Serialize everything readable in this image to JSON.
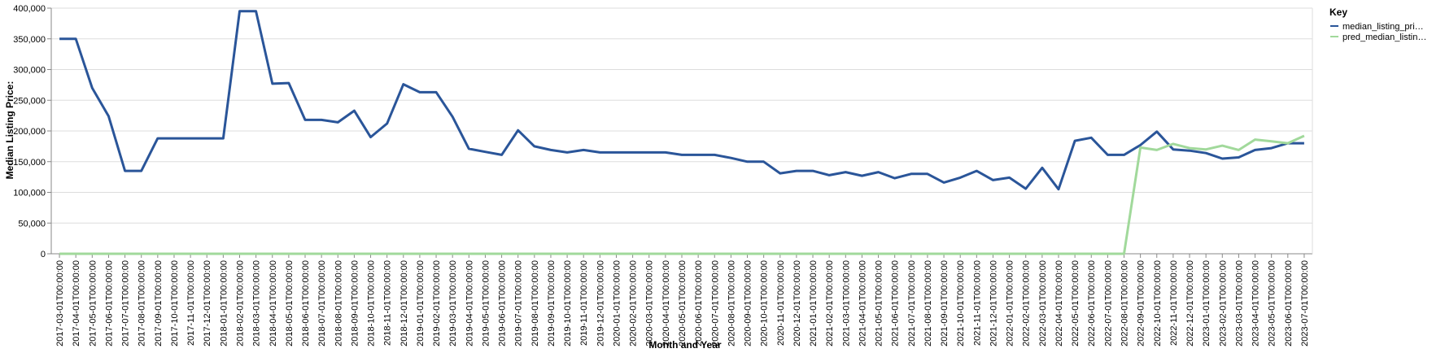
{
  "chart_data": {
    "type": "line",
    "xlabel": "Month and Year",
    "ylabel": "Median Listing Price:",
    "ylim": [
      0,
      400000
    ],
    "yticks": [
      "0",
      "50,000",
      "100,000",
      "150,000",
      "200,000",
      "250,000",
      "300,000",
      "350,000",
      "400,000"
    ],
    "grid": true,
    "legend": {
      "title": "Key",
      "placement": "top-right"
    },
    "x": [
      "2017-03-01T00:00:00",
      "2017-04-01T00:00:00",
      "2017-05-01T00:00:00",
      "2017-06-01T00:00:00",
      "2017-07-01T00:00:00",
      "2017-08-01T00:00:00",
      "2017-09-01T00:00:00",
      "2017-10-01T00:00:00",
      "2017-11-01T00:00:00",
      "2017-12-01T00:00:00",
      "2018-01-01T00:00:00",
      "2018-02-01T00:00:00",
      "2018-03-01T00:00:00",
      "2018-04-01T00:00:00",
      "2018-05-01T00:00:00",
      "2018-06-01T00:00:00",
      "2018-07-01T00:00:00",
      "2018-08-01T00:00:00",
      "2018-09-01T00:00:00",
      "2018-10-01T00:00:00",
      "2018-11-01T00:00:00",
      "2018-12-01T00:00:00",
      "2019-01-01T00:00:00",
      "2019-02-01T00:00:00",
      "2019-03-01T00:00:00",
      "2019-04-01T00:00:00",
      "2019-05-01T00:00:00",
      "2019-06-01T00:00:00",
      "2019-07-01T00:00:00",
      "2019-08-01T00:00:00",
      "2019-09-01T00:00:00",
      "2019-10-01T00:00:00",
      "2019-11-01T00:00:00",
      "2019-12-01T00:00:00",
      "2020-01-01T00:00:00",
      "2020-02-01T00:00:00",
      "2020-03-01T00:00:00",
      "2020-04-01T00:00:00",
      "2020-05-01T00:00:00",
      "2020-06-01T00:00:00",
      "2020-07-01T00:00:00",
      "2020-08-01T00:00:00",
      "2020-09-01T00:00:00",
      "2020-10-01T00:00:00",
      "2020-11-01T00:00:00",
      "2020-12-01T00:00:00",
      "2021-01-01T00:00:00",
      "2021-02-01T00:00:00",
      "2021-03-01T00:00:00",
      "2021-04-01T00:00:00",
      "2021-05-01T00:00:00",
      "2021-06-01T00:00:00",
      "2021-07-01T00:00:00",
      "2021-08-01T00:00:00",
      "2021-09-01T00:00:00",
      "2021-10-01T00:00:00",
      "2021-11-01T00:00:00",
      "2021-12-01T00:00:00",
      "2022-01-01T00:00:00",
      "2022-02-01T00:00:00",
      "2022-03-01T00:00:00",
      "2022-04-01T00:00:00",
      "2022-05-01T00:00:00",
      "2022-06-01T00:00:00",
      "2022-07-01T00:00:00",
      "2022-08-01T00:00:00",
      "2022-09-01T00:00:00",
      "2022-10-01T00:00:00",
      "2022-11-01T00:00:00",
      "2022-12-01T00:00:00",
      "2023-01-01T00:00:00",
      "2023-02-01T00:00:00",
      "2023-03-01T00:00:00",
      "2023-04-01T00:00:00",
      "2023-05-01T00:00:00",
      "2023-06-01T00:00:00",
      "2023-07-01T00:00:00"
    ],
    "series": [
      {
        "name": "median_listing_pri…",
        "color": "#2a5599",
        "values": [
          350000,
          350000,
          270000,
          224000,
          135000,
          135000,
          188000,
          188000,
          188000,
          188000,
          188000,
          395000,
          395000,
          277000,
          278000,
          218000,
          218000,
          214000,
          233000,
          190000,
          212000,
          276000,
          263000,
          263000,
          223000,
          171000,
          166000,
          161000,
          201000,
          175000,
          169000,
          165000,
          169000,
          165000,
          165000,
          165000,
          165000,
          165000,
          161000,
          161000,
          161000,
          156000,
          150000,
          150000,
          131000,
          135000,
          135000,
          128000,
          133000,
          127000,
          133000,
          123000,
          130000,
          130000,
          116000,
          124000,
          135000,
          120000,
          124000,
          106000,
          140000,
          105000,
          184000,
          189000,
          161000,
          161000,
          177000,
          199000,
          170000,
          168000,
          164000,
          155000,
          157000,
          169000,
          172000,
          180000,
          180000
        ]
      },
      {
        "name": "pred_median_listin…",
        "color": "#a1d99b",
        "values": [
          0,
          0,
          0,
          0,
          0,
          0,
          0,
          0,
          0,
          0,
          0,
          0,
          0,
          0,
          0,
          0,
          0,
          0,
          0,
          0,
          0,
          0,
          0,
          0,
          0,
          0,
          0,
          0,
          0,
          0,
          0,
          0,
          0,
          0,
          0,
          0,
          0,
          0,
          0,
          0,
          0,
          0,
          0,
          0,
          0,
          0,
          0,
          0,
          0,
          0,
          0,
          0,
          0,
          0,
          0,
          0,
          0,
          0,
          0,
          0,
          0,
          0,
          0,
          0,
          0,
          0,
          173000,
          169000,
          179000,
          172000,
          170000,
          176000,
          169000,
          186000,
          183000,
          180000,
          192000
        ]
      }
    ]
  }
}
